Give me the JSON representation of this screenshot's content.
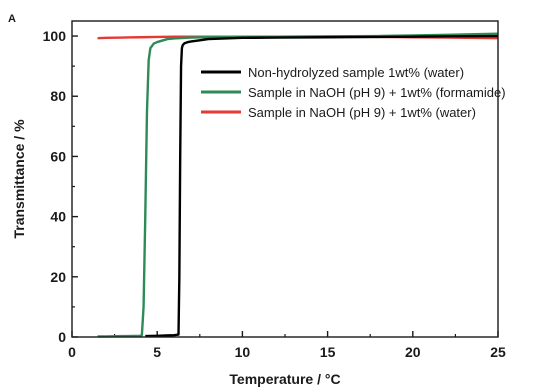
{
  "chart_data": {
    "type": "line",
    "panel_label": "A",
    "title": "",
    "xlabel": "Temperature / °C",
    "ylabel": "Transmittance / %",
    "xlim": [
      0,
      25
    ],
    "ylim": [
      0,
      105
    ],
    "xticks": [
      0,
      5,
      10,
      15,
      20,
      25
    ],
    "yticks": [
      0,
      20,
      40,
      60,
      80,
      100
    ],
    "grid": false,
    "legend_position": "right",
    "series": [
      {
        "name": "Non-hydrolyzed sample 1wt% (water)",
        "color": "#000000",
        "x": [
          4.3,
          5.0,
          5.5,
          6.0,
          6.25,
          6.3,
          6.35,
          6.4,
          6.45,
          6.5,
          6.6,
          6.8,
          7.0,
          7.5,
          8.0,
          9.0,
          10.0,
          12.0,
          15.0,
          18.0,
          20.0,
          22.0,
          25.0
        ],
        "y": [
          0.3,
          0.4,
          0.5,
          0.6,
          0.8,
          20,
          60,
          90,
          96,
          97,
          97.6,
          98,
          98.2,
          98.6,
          99,
          99.2,
          99.4,
          99.5,
          99.6,
          99.7,
          99.8,
          99.9,
          100
        ]
      },
      {
        "name": "Sample in NaOH (pH 9) + 1wt% (formamide)",
        "color": "#2e8b57",
        "x": [
          1.5,
          2.0,
          3.0,
          4.0,
          4.1,
          4.2,
          4.3,
          4.4,
          4.5,
          4.6,
          4.8,
          5.0,
          5.3,
          5.6,
          6.0,
          7.0,
          8.0,
          10.0,
          12.0,
          15.0,
          18.0,
          20.0,
          22.0,
          25.0
        ],
        "y": [
          0.2,
          0.2,
          0.3,
          0.4,
          0.6,
          10,
          40,
          75,
          92,
          96,
          97.5,
          98,
          98.5,
          99,
          99.2,
          99.5,
          99.6,
          99.7,
          99.8,
          99.9,
          100,
          100.2,
          100.4,
          100.8
        ]
      },
      {
        "name": "Sample in NaOH (pH 9) + 1wt% (water)",
        "color": "#e53935",
        "x": [
          1.5,
          2.0,
          3.0,
          4.0,
          5.0,
          6.0,
          7.0,
          8.0,
          10.0,
          12.0,
          15.0,
          18.0,
          20.0,
          22.0,
          25.0
        ],
        "y": [
          99.3,
          99.4,
          99.5,
          99.6,
          99.7,
          99.8,
          99.8,
          99.8,
          99.8,
          99.8,
          99.8,
          99.7,
          99.6,
          99.5,
          99.3
        ]
      }
    ]
  }
}
